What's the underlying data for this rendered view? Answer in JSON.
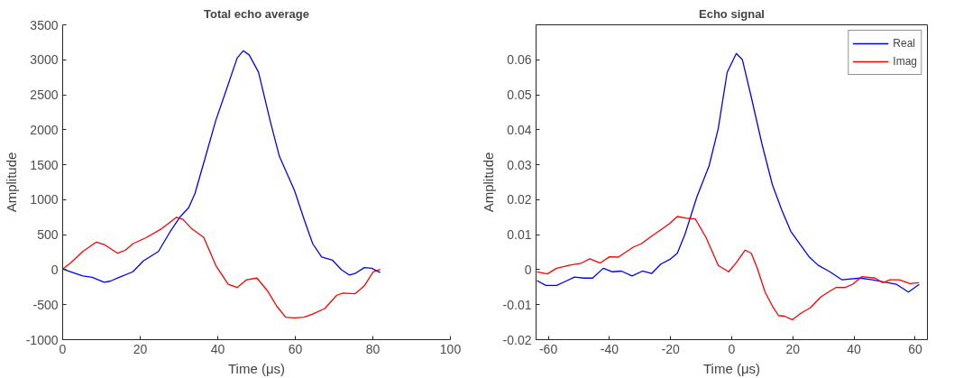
{
  "chart_data": [
    {
      "type": "line",
      "title": "Total echo average",
      "xlabel": "Time (μs)",
      "ylabel": "Amplitude",
      "xlim": [
        0,
        100
      ],
      "xticks": [
        0,
        20,
        40,
        60,
        80,
        100
      ],
      "ylim": [
        -1000,
        3500
      ],
      "yticks": [
        -1000,
        -500,
        0,
        500,
        1000,
        1500,
        2000,
        2500,
        3000,
        3500
      ],
      "grid": false,
      "legend": false,
      "series": [
        {
          "color": "#0000ff",
          "x": [
            0,
            2.1,
            5.2,
            7.6,
            10.7,
            12.2,
            14.6,
            18.1,
            20.8,
            24.7,
            27.8,
            30.2,
            32.5,
            34.1,
            36.4,
            39.5,
            42.7,
            45,
            46.6,
            48.1,
            50.5,
            53.6,
            55.9,
            59.8,
            62.2,
            64.5,
            66.8,
            69.6,
            71.9,
            73.9,
            75.4,
            77.8,
            79.7,
            81.9
          ],
          "values": [
            10,
            -30,
            -90,
            -110,
            -180,
            -165,
            -110,
            -30,
            125,
            260,
            550,
            750,
            885,
            1085,
            1530,
            2135,
            2650,
            3025,
            3130,
            3070,
            2825,
            2110,
            1620,
            1130,
            730,
            370,
            180,
            135,
            0,
            -75,
            -55,
            30,
            20,
            -40
          ]
        },
        {
          "color": "#ff0000",
          "x": [
            0,
            2.1,
            5.2,
            8.7,
            10.7,
            14.2,
            16.2,
            18.1,
            21.6,
            25.5,
            29.4,
            31,
            33.3,
            36.4,
            39.5,
            42.7,
            45,
            47.4,
            50.1,
            52.8,
            55.2,
            57.5,
            59.8,
            62.2,
            64.5,
            67.6,
            70.7,
            72.3,
            75.4,
            77.8,
            80.1,
            81.9
          ],
          "values": [
            10,
            100,
            260,
            395,
            360,
            235,
            280,
            370,
            460,
            585,
            750,
            720,
            585,
            460,
            60,
            -210,
            -255,
            -145,
            -120,
            -300,
            -520,
            -680,
            -690,
            -680,
            -635,
            -555,
            -365,
            -335,
            -345,
            -230,
            -30,
            5
          ]
        }
      ]
    },
    {
      "type": "line",
      "title": "Echo signal",
      "xlabel": "Time (μs)",
      "ylabel": "Amplitude",
      "xlim": [
        -64,
        64
      ],
      "xticks": [
        -60,
        -40,
        -20,
        0,
        20,
        40,
        60
      ],
      "ylim": [
        -0.02,
        0.07
      ],
      "yticks": [
        -0.02,
        -0.01,
        0,
        0.01,
        0.02,
        0.03,
        0.04,
        0.05,
        0.06
      ],
      "grid": false,
      "legend": "top right",
      "series": [
        {
          "name": "Real",
          "color": "#0000ff",
          "x": [
            -63.7,
            -60.8,
            -57.3,
            -54.3,
            -51.4,
            -48.4,
            -45.5,
            -42,
            -39,
            -36.1,
            -32.6,
            -29.2,
            -26.2,
            -23.2,
            -20.3,
            -17.8,
            -15.3,
            -11.4,
            -7.4,
            -4.4,
            -1.5,
            1.5,
            3.5,
            6.4,
            9.9,
            13.3,
            16.3,
            19.3,
            22.2,
            25.2,
            28.2,
            32.1,
            36.1,
            42,
            46,
            49.9,
            53.9,
            57.8,
            61.3
          ],
          "values": [
            -0.0031,
            -0.0045,
            -0.0045,
            -0.0033,
            -0.0021,
            -0.0024,
            -0.0024,
            0.0004,
            -0.0006,
            -0.0004,
            -0.0018,
            -0.0004,
            -0.0011,
            0.0016,
            0.0029,
            0.0047,
            0.0101,
            0.0208,
            0.0297,
            0.0404,
            0.0564,
            0.0618,
            0.06,
            0.0493,
            0.0359,
            0.0243,
            0.0172,
            0.011,
            0.0074,
            0.0038,
            0.0013,
            -0.0006,
            -0.0029,
            -0.0024,
            -0.0029,
            -0.0035,
            -0.0042,
            -0.0064,
            -0.0042
          ]
        },
        {
          "name": "Imag",
          "color": "#ff0000",
          "x": [
            -63.7,
            -60.3,
            -57.3,
            -52.9,
            -49.4,
            -46.4,
            -43,
            -40,
            -37.1,
            -32.1,
            -29.6,
            -26.2,
            -23.2,
            -20.3,
            -17.8,
            -14.8,
            -11.9,
            -8.4,
            -4.4,
            -1,
            1.5,
            4.4,
            6.4,
            8.4,
            10.9,
            13.3,
            15.3,
            17.3,
            19.8,
            22.7,
            25.7,
            29.1,
            31.6,
            34.1,
            37.1,
            39.5,
            42.5,
            46.9,
            49.4,
            51.8,
            54.8,
            58.3,
            61.3
          ],
          "values": [
            -0.0006,
            -0.0012,
            0.0004,
            0.0013,
            0.0018,
            0.0031,
            0.0019,
            0.0037,
            0.0036,
            0.0065,
            0.0074,
            0.0096,
            0.0114,
            0.0132,
            0.0152,
            0.0147,
            0.0145,
            0.0092,
            0.0012,
            -0.0006,
            0.002,
            0.0056,
            0.0047,
            0.0003,
            -0.0064,
            -0.0104,
            -0.0131,
            -0.0133,
            -0.0143,
            -0.0124,
            -0.0109,
            -0.0078,
            -0.0064,
            -0.0051,
            -0.0051,
            -0.0042,
            -0.002,
            -0.0024,
            -0.0037,
            -0.0029,
            -0.0029,
            -0.004,
            -0.0037
          ]
        }
      ]
    }
  ]
}
